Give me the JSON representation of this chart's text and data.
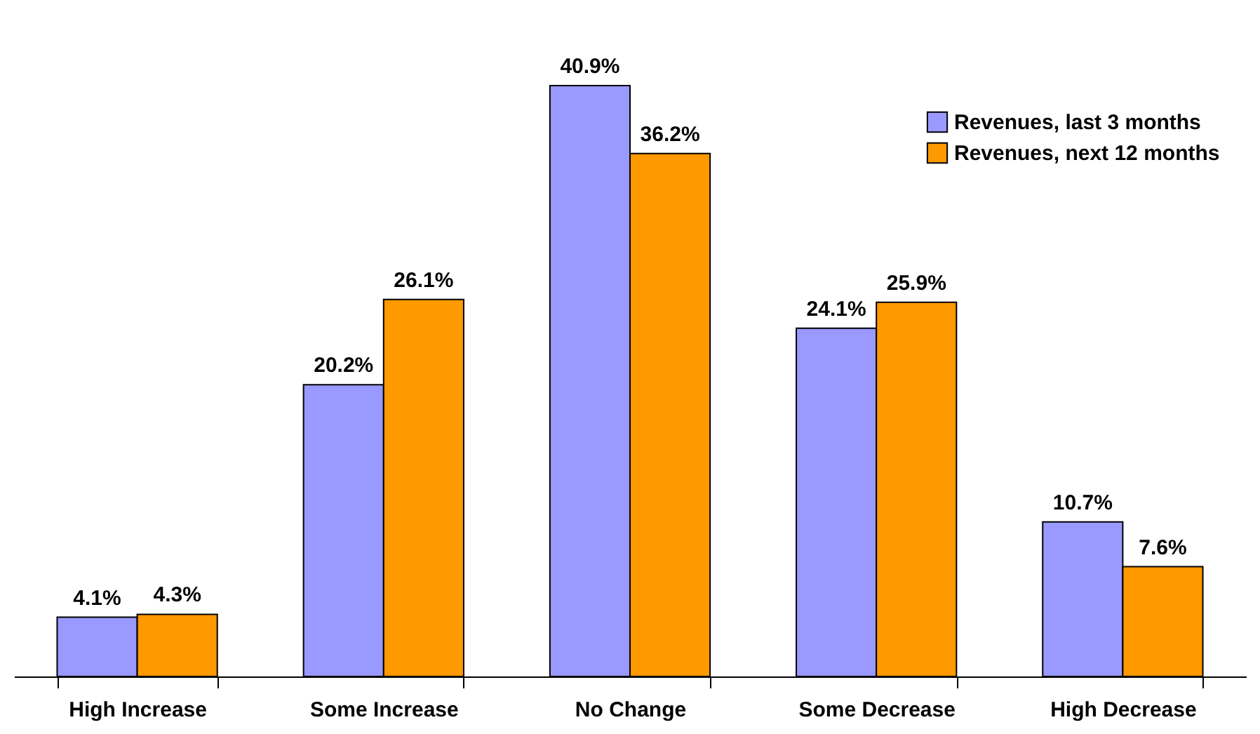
{
  "chart_data": {
    "type": "bar",
    "categories": [
      "High Increase",
      "Some Increase",
      "No Change",
      "Some Decrease",
      "High Decrease"
    ],
    "series": [
      {
        "name": "Revenues, last 3 months",
        "color": "#9999ff",
        "values": [
          4.1,
          20.2,
          40.9,
          24.1,
          10.7
        ],
        "value_labels": [
          "4.1%",
          "20.2%",
          "40.9%",
          "24.1%",
          "10.7%"
        ]
      },
      {
        "name": "Revenues, next 12 months",
        "color": "#ff9900",
        "values": [
          4.3,
          26.1,
          36.2,
          25.9,
          7.6
        ],
        "value_labels": [
          "4.3%",
          "26.1%",
          "36.2%",
          "25.9%",
          "7.6%"
        ]
      }
    ],
    "legend": "top right",
    "grid": false
  }
}
